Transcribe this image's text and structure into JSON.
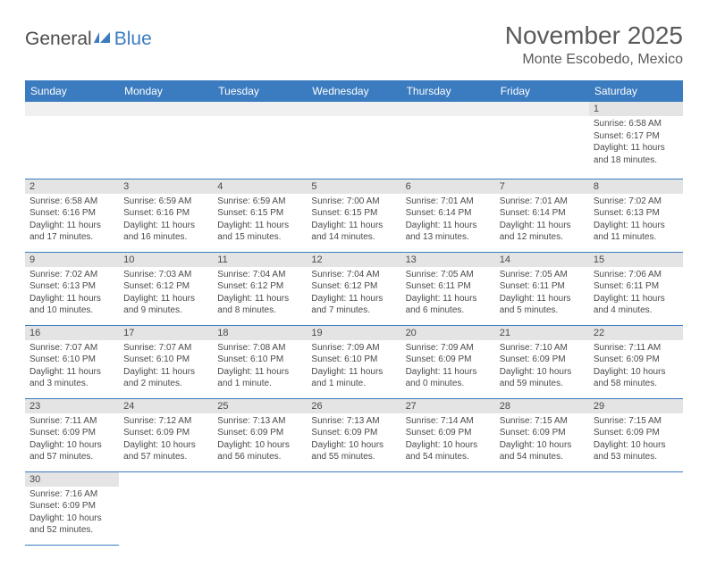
{
  "logo": {
    "part1": "General",
    "part2": "Blue"
  },
  "title": "November 2025",
  "location": "Monte Escobedo, Mexico",
  "colors": {
    "header_bg": "#3b7bbf",
    "header_text": "#ffffff",
    "daynum_bg": "#e4e4e4",
    "text": "#4a4a4a",
    "border": "#3b7bbf"
  },
  "day_headers": [
    "Sunday",
    "Monday",
    "Tuesday",
    "Wednesday",
    "Thursday",
    "Friday",
    "Saturday"
  ],
  "weeks": [
    [
      {
        "n": "",
        "sr": "",
        "ss": "",
        "dl": ""
      },
      {
        "n": "",
        "sr": "",
        "ss": "",
        "dl": ""
      },
      {
        "n": "",
        "sr": "",
        "ss": "",
        "dl": ""
      },
      {
        "n": "",
        "sr": "",
        "ss": "",
        "dl": ""
      },
      {
        "n": "",
        "sr": "",
        "ss": "",
        "dl": ""
      },
      {
        "n": "",
        "sr": "",
        "ss": "",
        "dl": ""
      },
      {
        "n": "1",
        "sr": "Sunrise: 6:58 AM",
        "ss": "Sunset: 6:17 PM",
        "dl": "Daylight: 11 hours and 18 minutes."
      }
    ],
    [
      {
        "n": "2",
        "sr": "Sunrise: 6:58 AM",
        "ss": "Sunset: 6:16 PM",
        "dl": "Daylight: 11 hours and 17 minutes."
      },
      {
        "n": "3",
        "sr": "Sunrise: 6:59 AM",
        "ss": "Sunset: 6:16 PM",
        "dl": "Daylight: 11 hours and 16 minutes."
      },
      {
        "n": "4",
        "sr": "Sunrise: 6:59 AM",
        "ss": "Sunset: 6:15 PM",
        "dl": "Daylight: 11 hours and 15 minutes."
      },
      {
        "n": "5",
        "sr": "Sunrise: 7:00 AM",
        "ss": "Sunset: 6:15 PM",
        "dl": "Daylight: 11 hours and 14 minutes."
      },
      {
        "n": "6",
        "sr": "Sunrise: 7:01 AM",
        "ss": "Sunset: 6:14 PM",
        "dl": "Daylight: 11 hours and 13 minutes."
      },
      {
        "n": "7",
        "sr": "Sunrise: 7:01 AM",
        "ss": "Sunset: 6:14 PM",
        "dl": "Daylight: 11 hours and 12 minutes."
      },
      {
        "n": "8",
        "sr": "Sunrise: 7:02 AM",
        "ss": "Sunset: 6:13 PM",
        "dl": "Daylight: 11 hours and 11 minutes."
      }
    ],
    [
      {
        "n": "9",
        "sr": "Sunrise: 7:02 AM",
        "ss": "Sunset: 6:13 PM",
        "dl": "Daylight: 11 hours and 10 minutes."
      },
      {
        "n": "10",
        "sr": "Sunrise: 7:03 AM",
        "ss": "Sunset: 6:12 PM",
        "dl": "Daylight: 11 hours and 9 minutes."
      },
      {
        "n": "11",
        "sr": "Sunrise: 7:04 AM",
        "ss": "Sunset: 6:12 PM",
        "dl": "Daylight: 11 hours and 8 minutes."
      },
      {
        "n": "12",
        "sr": "Sunrise: 7:04 AM",
        "ss": "Sunset: 6:12 PM",
        "dl": "Daylight: 11 hours and 7 minutes."
      },
      {
        "n": "13",
        "sr": "Sunrise: 7:05 AM",
        "ss": "Sunset: 6:11 PM",
        "dl": "Daylight: 11 hours and 6 minutes."
      },
      {
        "n": "14",
        "sr": "Sunrise: 7:05 AM",
        "ss": "Sunset: 6:11 PM",
        "dl": "Daylight: 11 hours and 5 minutes."
      },
      {
        "n": "15",
        "sr": "Sunrise: 7:06 AM",
        "ss": "Sunset: 6:11 PM",
        "dl": "Daylight: 11 hours and 4 minutes."
      }
    ],
    [
      {
        "n": "16",
        "sr": "Sunrise: 7:07 AM",
        "ss": "Sunset: 6:10 PM",
        "dl": "Daylight: 11 hours and 3 minutes."
      },
      {
        "n": "17",
        "sr": "Sunrise: 7:07 AM",
        "ss": "Sunset: 6:10 PM",
        "dl": "Daylight: 11 hours and 2 minutes."
      },
      {
        "n": "18",
        "sr": "Sunrise: 7:08 AM",
        "ss": "Sunset: 6:10 PM",
        "dl": "Daylight: 11 hours and 1 minute."
      },
      {
        "n": "19",
        "sr": "Sunrise: 7:09 AM",
        "ss": "Sunset: 6:10 PM",
        "dl": "Daylight: 11 hours and 1 minute."
      },
      {
        "n": "20",
        "sr": "Sunrise: 7:09 AM",
        "ss": "Sunset: 6:09 PM",
        "dl": "Daylight: 11 hours and 0 minutes."
      },
      {
        "n": "21",
        "sr": "Sunrise: 7:10 AM",
        "ss": "Sunset: 6:09 PM",
        "dl": "Daylight: 10 hours and 59 minutes."
      },
      {
        "n": "22",
        "sr": "Sunrise: 7:11 AM",
        "ss": "Sunset: 6:09 PM",
        "dl": "Daylight: 10 hours and 58 minutes."
      }
    ],
    [
      {
        "n": "23",
        "sr": "Sunrise: 7:11 AM",
        "ss": "Sunset: 6:09 PM",
        "dl": "Daylight: 10 hours and 57 minutes."
      },
      {
        "n": "24",
        "sr": "Sunrise: 7:12 AM",
        "ss": "Sunset: 6:09 PM",
        "dl": "Daylight: 10 hours and 57 minutes."
      },
      {
        "n": "25",
        "sr": "Sunrise: 7:13 AM",
        "ss": "Sunset: 6:09 PM",
        "dl": "Daylight: 10 hours and 56 minutes."
      },
      {
        "n": "26",
        "sr": "Sunrise: 7:13 AM",
        "ss": "Sunset: 6:09 PM",
        "dl": "Daylight: 10 hours and 55 minutes."
      },
      {
        "n": "27",
        "sr": "Sunrise: 7:14 AM",
        "ss": "Sunset: 6:09 PM",
        "dl": "Daylight: 10 hours and 54 minutes."
      },
      {
        "n": "28",
        "sr": "Sunrise: 7:15 AM",
        "ss": "Sunset: 6:09 PM",
        "dl": "Daylight: 10 hours and 54 minutes."
      },
      {
        "n": "29",
        "sr": "Sunrise: 7:15 AM",
        "ss": "Sunset: 6:09 PM",
        "dl": "Daylight: 10 hours and 53 minutes."
      }
    ],
    [
      {
        "n": "30",
        "sr": "Sunrise: 7:16 AM",
        "ss": "Sunset: 6:09 PM",
        "dl": "Daylight: 10 hours and 52 minutes."
      },
      {
        "n": "",
        "sr": "",
        "ss": "",
        "dl": ""
      },
      {
        "n": "",
        "sr": "",
        "ss": "",
        "dl": ""
      },
      {
        "n": "",
        "sr": "",
        "ss": "",
        "dl": ""
      },
      {
        "n": "",
        "sr": "",
        "ss": "",
        "dl": ""
      },
      {
        "n": "",
        "sr": "",
        "ss": "",
        "dl": ""
      },
      {
        "n": "",
        "sr": "",
        "ss": "",
        "dl": ""
      }
    ]
  ]
}
